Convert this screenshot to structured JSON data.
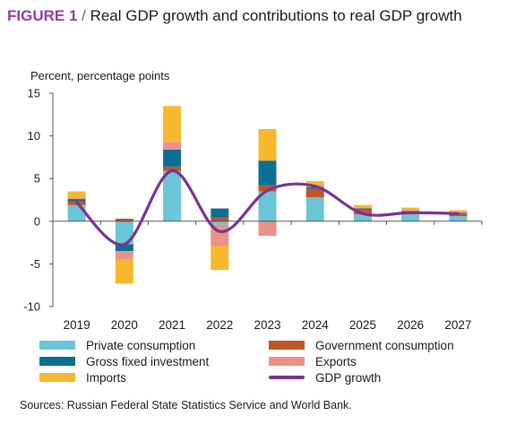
{
  "figure": {
    "label": "FIGURE 1",
    "separator": " / ",
    "title": "Real GDP growth and contributions to real GDP growth"
  },
  "source_note": "Sources: Russian Federal State Statistics Service and World Bank.",
  "chart_data": {
    "type": "bar",
    "stacked": true,
    "title": "Real GDP growth and contributions to real GDP growth",
    "ylabel": "Percent, percentage points",
    "ylim": [
      -10,
      15
    ],
    "yticks": [
      15,
      10,
      5,
      0,
      -5,
      -10
    ],
    "grid": false,
    "legend_position": "bottom",
    "categories": [
      "2019",
      "2020",
      "2021",
      "2022",
      "2023",
      "2024",
      "2025",
      "2026",
      "2027"
    ],
    "series": [
      {
        "name": "Private consumption",
        "kind": "bar",
        "color": "#6cc5d6",
        "values": [
          1.9,
          -2.7,
          5.9,
          -0.4,
          3.5,
          2.8,
          0.8,
          0.8,
          0.6
        ]
      },
      {
        "name": "Government consumption",
        "kind": "bar",
        "color": "#c0542a",
        "values": [
          0.4,
          0.3,
          0.5,
          0.5,
          0.7,
          1.0,
          0.6,
          0.3,
          0.3
        ]
      },
      {
        "name": "Gross fixed investment",
        "kind": "bar",
        "color": "#0d6e95",
        "values": [
          0.3,
          -0.8,
          2.0,
          1.0,
          2.9,
          0.2,
          0.1,
          0.1,
          0.1
        ]
      },
      {
        "name": "Exports",
        "kind": "bar",
        "color": "#ea9189",
        "values": [
          0.2,
          -1.0,
          0.9,
          -2.5,
          -1.7,
          0.3,
          0.1,
          0.1,
          0.1
        ]
      },
      {
        "name": "Imports",
        "kind": "bar",
        "color": "#f7b82d",
        "values": [
          0.7,
          -2.8,
          4.2,
          -2.8,
          3.7,
          0.4,
          0.3,
          0.3,
          0.2
        ]
      },
      {
        "name": "GDP growth",
        "kind": "line",
        "color": "#7b3294",
        "values": [
          2.2,
          -2.7,
          5.9,
          -1.2,
          3.6,
          4.1,
          0.9,
          1.0,
          0.9
        ]
      }
    ]
  }
}
